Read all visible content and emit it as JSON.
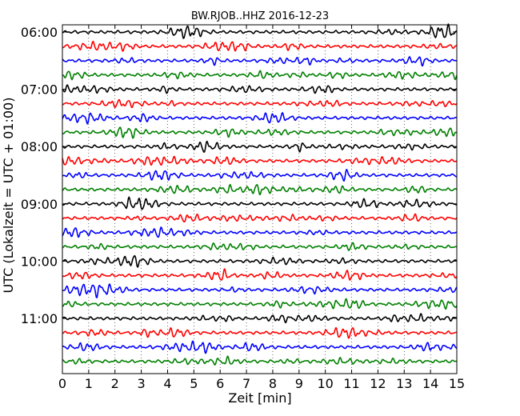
{
  "chart_data": {
    "type": "line",
    "title": "BW.RJOB..HHZ 2016-12-23",
    "xlabel": "Zeit  [min]",
    "ylabel": "UTC (Lokalzeit = UTC + 01:00)",
    "xlim": [
      0,
      15
    ],
    "x_ticks": [
      "0",
      "1",
      "2",
      "3",
      "4",
      "5",
      "6",
      "7",
      "8",
      "9",
      "10",
      "11",
      "12",
      "13",
      "14",
      "15"
    ],
    "y_ticks": [
      "06:00",
      "07:00",
      "08:00",
      "09:00",
      "10:00",
      "11:00"
    ],
    "row_minutes": 15,
    "row_count": 24,
    "row_colors": [
      "#000000",
      "#ff0000",
      "#0000ff",
      "#008000"
    ],
    "grid": "dotted vertical lines every minute",
    "signal": "continuous oscillating seismogram trace in every row"
  }
}
